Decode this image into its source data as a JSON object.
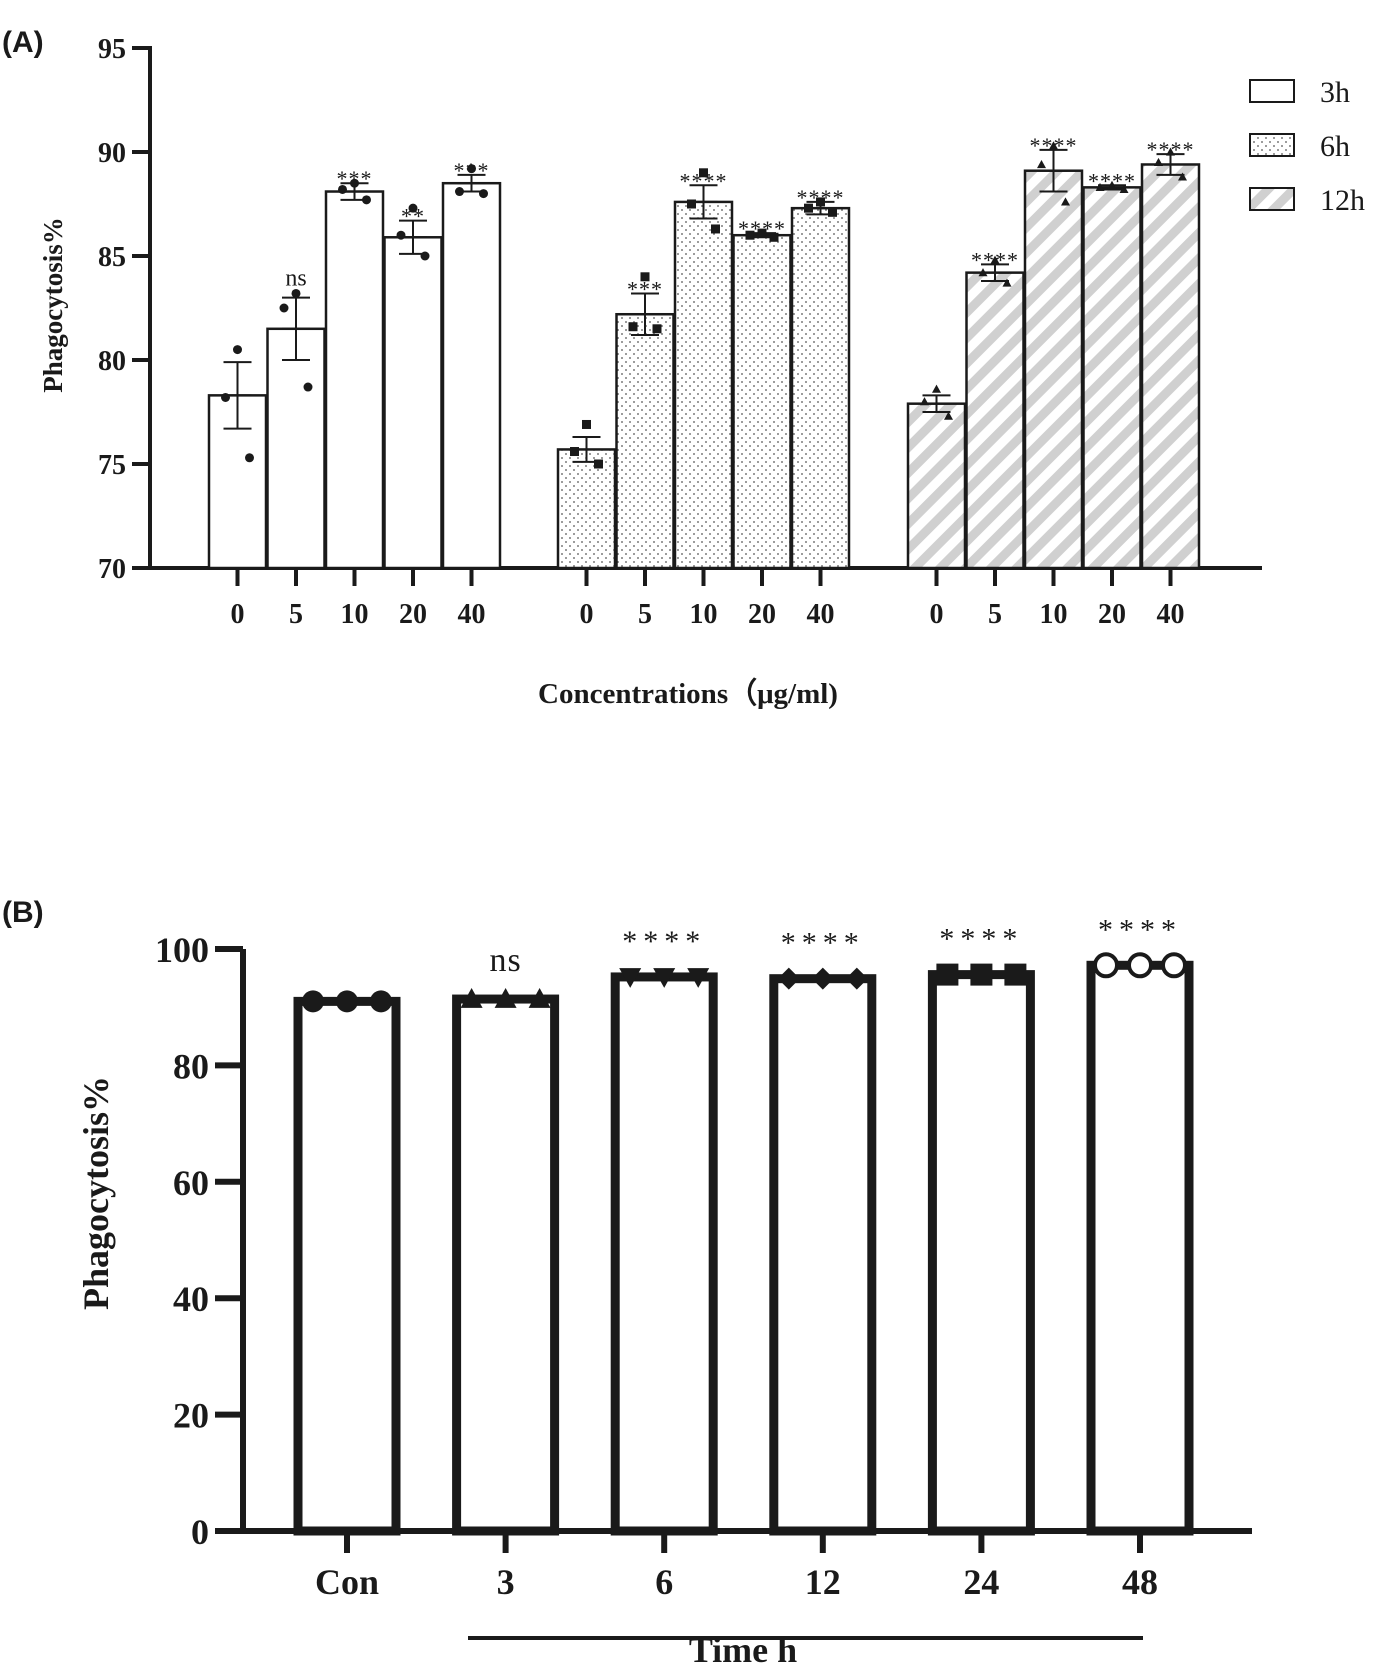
{
  "chart_data": [
    {
      "panel": "(A)",
      "type": "bar",
      "ylabel": "Phagocytosis%",
      "xlabel": "Concentrations（μg/ml)",
      "ylim": [
        70,
        95
      ],
      "yticks": [
        "70",
        "75",
        "80",
        "85",
        "90",
        "95"
      ],
      "categories": [
        "0",
        "5",
        "10",
        "20",
        "40"
      ],
      "legend_position": "top-right",
      "series": [
        {
          "name": "3h",
          "fill": "white",
          "marker": "circle",
          "values": [
            78.3,
            81.5,
            88.1,
            85.9,
            88.5
          ],
          "sem": [
            1.6,
            1.5,
            0.4,
            0.8,
            0.4
          ],
          "points": [
            [
              80.5,
              78.2,
              75.3
            ],
            [
              83.2,
              82.5,
              78.7
            ],
            [
              88.5,
              88.2,
              87.7
            ],
            [
              87.3,
              86.0,
              85.0
            ],
            [
              89.2,
              88.1,
              88.0
            ]
          ],
          "significance": [
            "",
            "ns",
            "***",
            "**",
            "***"
          ]
        },
        {
          "name": "6h",
          "fill": "dotted",
          "marker": "square",
          "values": [
            75.7,
            82.2,
            87.6,
            86.0,
            87.3
          ],
          "sem": [
            0.6,
            1.0,
            0.8,
            0.1,
            0.3
          ],
          "points": [
            [
              76.9,
              75.6,
              75.0
            ],
            [
              84.0,
              81.6,
              81.5
            ],
            [
              89.0,
              87.5,
              86.3
            ],
            [
              86.1,
              86.0,
              85.9
            ],
            [
              87.6,
              87.3,
              87.1
            ]
          ],
          "significance": [
            "",
            "***",
            "****",
            "****",
            "****"
          ]
        },
        {
          "name": "12h",
          "fill": "hatched",
          "marker": "triangle",
          "values": [
            77.9,
            84.2,
            89.1,
            88.3,
            89.4
          ],
          "sem": [
            0.4,
            0.4,
            1.0,
            0.1,
            0.5
          ],
          "points": [
            [
              78.6,
              78.0,
              77.3
            ],
            [
              84.8,
              84.2,
              83.7
            ],
            [
              90.3,
              89.4,
              87.6
            ],
            [
              88.4,
              88.3,
              88.2
            ],
            [
              90.0,
              89.5,
              88.8
            ]
          ],
          "significance": [
            "",
            "****",
            "****",
            "****",
            "****"
          ]
        }
      ]
    },
    {
      "panel": "(B)",
      "type": "bar",
      "ylabel": "Phagocytosis%",
      "xlabel": "Time h",
      "ylim": [
        0,
        100
      ],
      "yticks": [
        "0",
        "20",
        "40",
        "60",
        "80",
        "100"
      ],
      "categories": [
        "Con",
        "3",
        "6",
        "12",
        "24",
        "48"
      ],
      "values": [
        91.0,
        91.4,
        95.2,
        94.9,
        95.6,
        97.2
      ],
      "markers": [
        "filled-circle",
        "triangle-up",
        "triangle-down",
        "diamond",
        "square",
        "open-circle"
      ],
      "significance": [
        "",
        "ns",
        "****",
        "****",
        "****",
        "****"
      ]
    }
  ]
}
